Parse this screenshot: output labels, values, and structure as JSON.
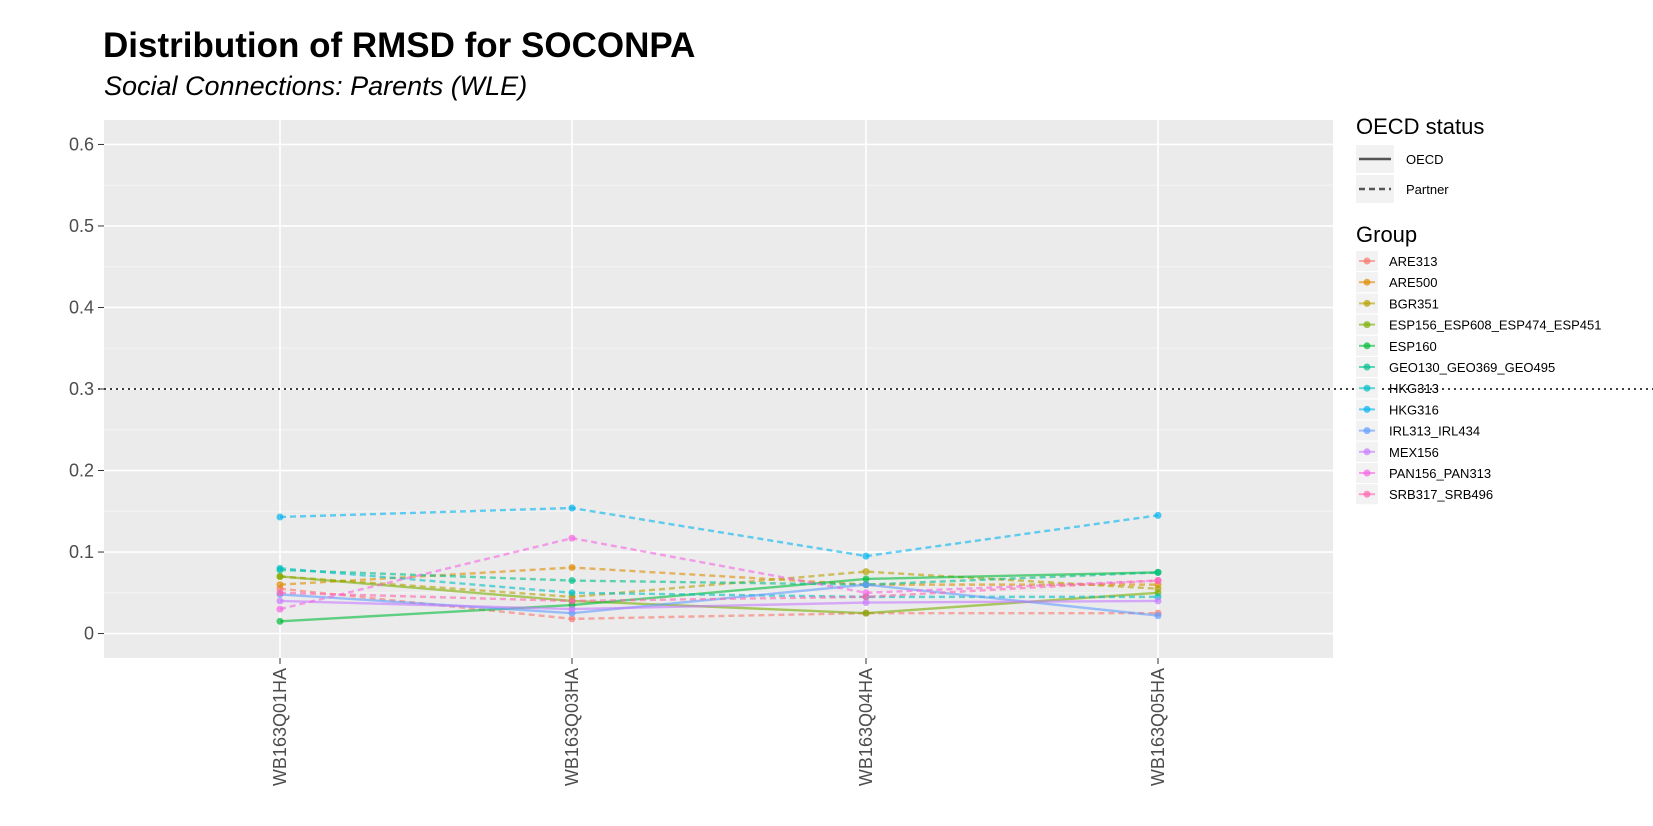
{
  "chart_data": {
    "type": "line",
    "title": "Distribution of RMSD for SOCONPA",
    "subtitle": "Social Connections: Parents (WLE)",
    "xlabel": "",
    "ylabel": "",
    "categories": [
      "WB163Q01HA",
      "WB163Q03HA",
      "WB163Q04HA",
      "WB163Q05HA"
    ],
    "ylim": [
      -0.03,
      0.63
    ],
    "yticks": [
      0,
      0.1,
      0.2,
      0.3,
      0.4,
      0.5,
      0.6
    ],
    "ytick_labels": [
      "0",
      "0.1",
      "0.2",
      "0.3",
      "0.4",
      "0.5",
      "0.6"
    ],
    "reference_line": {
      "y": 0.3,
      "style": "dotted",
      "color": "#000000"
    },
    "grid": true,
    "panel_background": "#ebebeb",
    "legend_position": "right",
    "linetype_legend": {
      "title": "OECD status",
      "entries": [
        {
          "label": "OECD",
          "dash": "solid"
        },
        {
          "label": "Partner",
          "dash": "dashed"
        }
      ]
    },
    "color_legend_title": "Group",
    "series": [
      {
        "name": "ARE313",
        "color": "#F8766D",
        "status": "Partner",
        "values": [
          0.055,
          0.018,
          0.025,
          0.025
        ]
      },
      {
        "name": "ARE500",
        "color": "#DE8C00",
        "status": "Partner",
        "values": [
          0.06,
          0.081,
          0.06,
          0.06
        ]
      },
      {
        "name": "BGR351",
        "color": "#B79F00",
        "status": "Partner",
        "values": [
          0.07,
          0.045,
          0.076,
          0.055
        ]
      },
      {
        "name": "ESP156_ESP608_ESP474_ESP451",
        "color": "#7CAE00",
        "status": "OECD",
        "values": [
          0.07,
          0.04,
          0.025,
          0.05
        ]
      },
      {
        "name": "ESP160",
        "color": "#00BA38",
        "status": "OECD",
        "values": [
          0.015,
          0.035,
          0.067,
          0.075
        ]
      },
      {
        "name": "GEO130_GEO369_GEO495",
        "color": "#00C08B",
        "status": "Partner",
        "values": [
          0.078,
          0.065,
          0.06,
          0.075
        ]
      },
      {
        "name": "HKG313",
        "color": "#00BFC4",
        "status": "Partner",
        "values": [
          0.08,
          0.05,
          0.045,
          0.045
        ]
      },
      {
        "name": "HKG316",
        "color": "#00B4F0",
        "status": "Partner",
        "values": [
          0.143,
          0.154,
          0.095,
          0.145
        ]
      },
      {
        "name": "IRL313_IRL434",
        "color": "#619CFF",
        "status": "OECD",
        "values": [
          0.048,
          0.025,
          0.06,
          0.022
        ]
      },
      {
        "name": "MEX156",
        "color": "#C77CFF",
        "status": "OECD",
        "values": [
          0.04,
          0.03,
          0.038,
          0.04
        ]
      },
      {
        "name": "PAN156_PAN313",
        "color": "#F564E3",
        "status": "Partner",
        "values": [
          0.03,
          0.117,
          0.05,
          0.065
        ]
      },
      {
        "name": "SRB317_SRB496",
        "color": "#FF64B0",
        "status": "Partner",
        "values": [
          0.05,
          0.04,
          0.045,
          0.065
        ]
      }
    ]
  }
}
